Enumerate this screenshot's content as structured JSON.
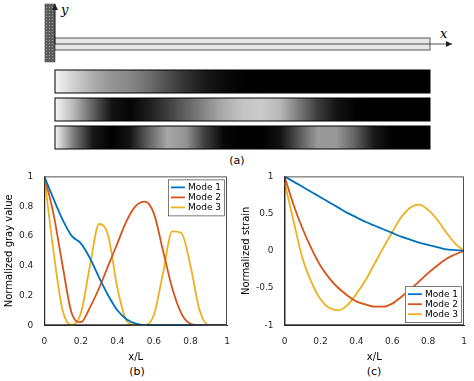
{
  "diagram": {
    "caption": "(a)",
    "axis_labels": {
      "x": "x",
      "y": "y"
    }
  },
  "chart_data": [
    {
      "type": "line",
      "caption": "(b)",
      "x_label": "x/L",
      "y_label": "Normalized gray value",
      "x": [
        0,
        0.05,
        0.1,
        0.15,
        0.2,
        0.25,
        0.3,
        0.35,
        0.4,
        0.45,
        0.5,
        0.55,
        0.6,
        0.65,
        0.7,
        0.75,
        0.8,
        0.85,
        0.9,
        0.95,
        1
      ],
      "xlim": [
        0,
        1
      ],
      "xticks": [
        0,
        0.2,
        0.4,
        0.6,
        0.8,
        1
      ],
      "ylim": [
        0,
        1
      ],
      "yticks": [
        0,
        0.2,
        0.4,
        0.6,
        0.8,
        1
      ],
      "grid": false,
      "legend": "upper right",
      "series": [
        {
          "name": "Mode 1",
          "color": "#0072bd",
          "values": [
            1,
            0.85,
            0.71,
            0.6,
            0.55,
            0.45,
            0.32,
            0.2,
            0.1,
            0.04,
            0.01,
            0,
            0,
            0,
            0,
            0,
            0,
            0,
            0,
            0,
            0
          ]
        },
        {
          "name": "Mode 2",
          "color": "#d95319",
          "values": [
            1,
            0.75,
            0.4,
            0.08,
            0.02,
            0.12,
            0.25,
            0.4,
            0.55,
            0.7,
            0.8,
            0.83,
            0.75,
            0.5,
            0.25,
            0.08,
            0.01,
            0,
            0,
            0,
            0
          ]
        },
        {
          "name": "Mode 3",
          "color": "#edb120",
          "values": [
            1,
            0.5,
            0.1,
            0,
            0.08,
            0.4,
            0.68,
            0.6,
            0.25,
            0.03,
            0,
            0,
            0.07,
            0.35,
            0.63,
            0.62,
            0.4,
            0.1,
            0,
            0,
            0
          ]
        }
      ]
    },
    {
      "type": "line",
      "caption": "(c)",
      "x_label": "x/L",
      "y_label": "Normalized strain",
      "x": [
        0,
        0.05,
        0.1,
        0.15,
        0.2,
        0.25,
        0.3,
        0.35,
        0.4,
        0.45,
        0.5,
        0.55,
        0.6,
        0.65,
        0.7,
        0.75,
        0.8,
        0.85,
        0.9,
        0.95,
        1
      ],
      "xlim": [
        0,
        1
      ],
      "xticks": [
        0,
        0.2,
        0.4,
        0.6,
        0.8,
        1
      ],
      "ylim": [
        -1,
        1
      ],
      "yticks": [
        -1,
        -0.5,
        0,
        0.5,
        1
      ],
      "grid": false,
      "legend": "lower right",
      "series": [
        {
          "name": "Mode 1",
          "color": "#0072bd",
          "values": [
            1,
            0.93,
            0.86,
            0.79,
            0.72,
            0.65,
            0.58,
            0.51,
            0.45,
            0.39,
            0.34,
            0.29,
            0.24,
            0.19,
            0.15,
            0.11,
            0.08,
            0.05,
            0.02,
            0.01,
            0
          ]
        },
        {
          "name": "Mode 2",
          "color": "#d95319",
          "values": [
            1,
            0.62,
            0.3,
            0.03,
            -0.2,
            -0.37,
            -0.5,
            -0.6,
            -0.68,
            -0.72,
            -0.75,
            -0.75,
            -0.71,
            -0.62,
            -0.52,
            -0.41,
            -0.3,
            -0.2,
            -0.11,
            -0.05,
            0
          ]
        },
        {
          "name": "Mode 3",
          "color": "#edb120",
          "values": [
            0.92,
            0.4,
            -0.1,
            -0.42,
            -0.65,
            -0.77,
            -0.8,
            -0.73,
            -0.58,
            -0.4,
            -0.18,
            0.04,
            0.25,
            0.45,
            0.58,
            0.62,
            0.55,
            0.42,
            0.25,
            0.1,
            0
          ]
        }
      ]
    }
  ]
}
